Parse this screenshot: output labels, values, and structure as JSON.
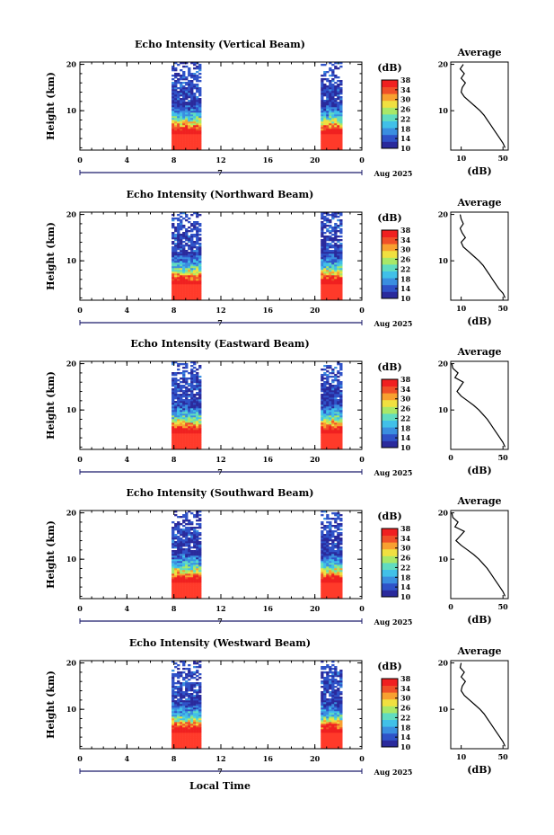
{
  "figure": {
    "xaxis_label": "Local Time",
    "date_label": "Aug 2025",
    "day_label": "7",
    "x_ticks": [
      "0",
      "4",
      "8",
      "12",
      "16",
      "20",
      "0"
    ],
    "colorbar_title": "(dB)",
    "colorbar_ticks": [
      "38",
      "34",
      "30",
      "26",
      "22",
      "18",
      "14",
      "10"
    ],
    "profile_title": "Average",
    "profile_xlabel": "(dB)",
    "ylabel": "Height (km)"
  },
  "colors": {
    "scale": [
      "#2a2a9c",
      "#2f52c8",
      "#3a8ee0",
      "#41c0e8",
      "#60dcc0",
      "#a8e868",
      "#f0e040",
      "#f8a030",
      "#f05028",
      "#f02020"
    ],
    "fill_hot": "#ff3a2a"
  },
  "panels": [
    {
      "title": "Echo Intensity (Vertical Beam)",
      "y_ticks": [
        "20",
        "10"
      ],
      "profile_x_ticks": [
        "10",
        "50"
      ],
      "profile_y_ticks": [
        "20",
        "10"
      ]
    },
    {
      "title": "Echo Intensity (Northward Beam)",
      "y_ticks": [
        "20",
        "10"
      ],
      "profile_x_ticks": [
        "10",
        "50"
      ],
      "profile_y_ticks": [
        "20",
        "10"
      ]
    },
    {
      "title": "Echo Intensity (Eastward Beam)",
      "y_ticks": [
        "20",
        "10"
      ],
      "profile_x_ticks": [
        "0",
        "50"
      ],
      "profile_y_ticks": [
        "20",
        "10"
      ]
    },
    {
      "title": "Echo Intensity (Southward Beam)",
      "y_ticks": [
        "20",
        "10"
      ],
      "profile_x_ticks": [
        "0",
        "50"
      ],
      "profile_y_ticks": [
        "20",
        "10"
      ]
    },
    {
      "title": "Echo Intensity (Westward Beam)",
      "y_ticks": [
        "20",
        "10"
      ],
      "profile_x_ticks": [
        "10",
        "50"
      ],
      "profile_y_ticks": [
        "20",
        "10"
      ]
    }
  ],
  "chart_data": {
    "type": "heatmap",
    "variable": "echo intensity",
    "units": "dB",
    "x_range_hours": [
      0,
      24
    ],
    "y_range_km": [
      1.5,
      20.5
    ],
    "colorbar_range_db": [
      10,
      38
    ],
    "observation_windows_hours": [
      [
        7.8,
        10.3
      ],
      [
        20.5,
        22.2
      ]
    ],
    "panels": [
      {
        "beam": "Vertical",
        "profile": {
          "height_km": [
            2,
            3,
            4,
            5,
            6,
            7,
            8,
            9,
            10,
            11,
            12,
            13,
            14,
            15,
            16,
            17,
            18,
            19,
            20
          ],
          "mean_db": [
            52,
            50,
            47,
            44,
            41,
            38,
            35,
            32,
            28,
            23,
            18,
            13,
            10,
            11,
            14,
            10,
            13,
            9,
            12
          ]
        }
      },
      {
        "beam": "Northward",
        "profile": {
          "height_km": [
            2,
            3,
            4,
            5,
            6,
            7,
            8,
            9,
            10,
            11,
            12,
            13,
            14,
            15,
            16,
            17,
            18,
            19,
            20
          ],
          "mean_db": [
            52,
            50,
            46,
            43,
            40,
            37,
            34,
            31,
            27,
            22,
            17,
            12,
            10,
            14,
            11,
            9,
            12,
            10,
            9
          ]
        }
      },
      {
        "beam": "Eastward",
        "profile": {
          "height_km": [
            2,
            3,
            4,
            5,
            6,
            7,
            8,
            9,
            10,
            11,
            12,
            13,
            14,
            15,
            16,
            17,
            18,
            19,
            20
          ],
          "mean_db": [
            52,
            50,
            47,
            44,
            41,
            38,
            35,
            31,
            27,
            22,
            16,
            10,
            6,
            9,
            12,
            4,
            7,
            2,
            1
          ]
        }
      },
      {
        "beam": "Southward",
        "profile": {
          "height_km": [
            2,
            3,
            4,
            5,
            6,
            7,
            8,
            9,
            10,
            11,
            12,
            13,
            14,
            15,
            16,
            17,
            18,
            19,
            20
          ],
          "mean_db": [
            52,
            50,
            47,
            44,
            41,
            38,
            35,
            31,
            27,
            22,
            16,
            10,
            5,
            9,
            13,
            4,
            7,
            2,
            1
          ]
        }
      },
      {
        "beam": "Westward",
        "profile": {
          "height_km": [
            2,
            3,
            4,
            5,
            6,
            7,
            8,
            9,
            10,
            11,
            12,
            13,
            14,
            15,
            16,
            17,
            18,
            19,
            20
          ],
          "mean_db": [
            52,
            50,
            47,
            44,
            41,
            38,
            35,
            32,
            28,
            23,
            18,
            13,
            10,
            11,
            14,
            10,
            13,
            9,
            10
          ]
        }
      }
    ]
  }
}
